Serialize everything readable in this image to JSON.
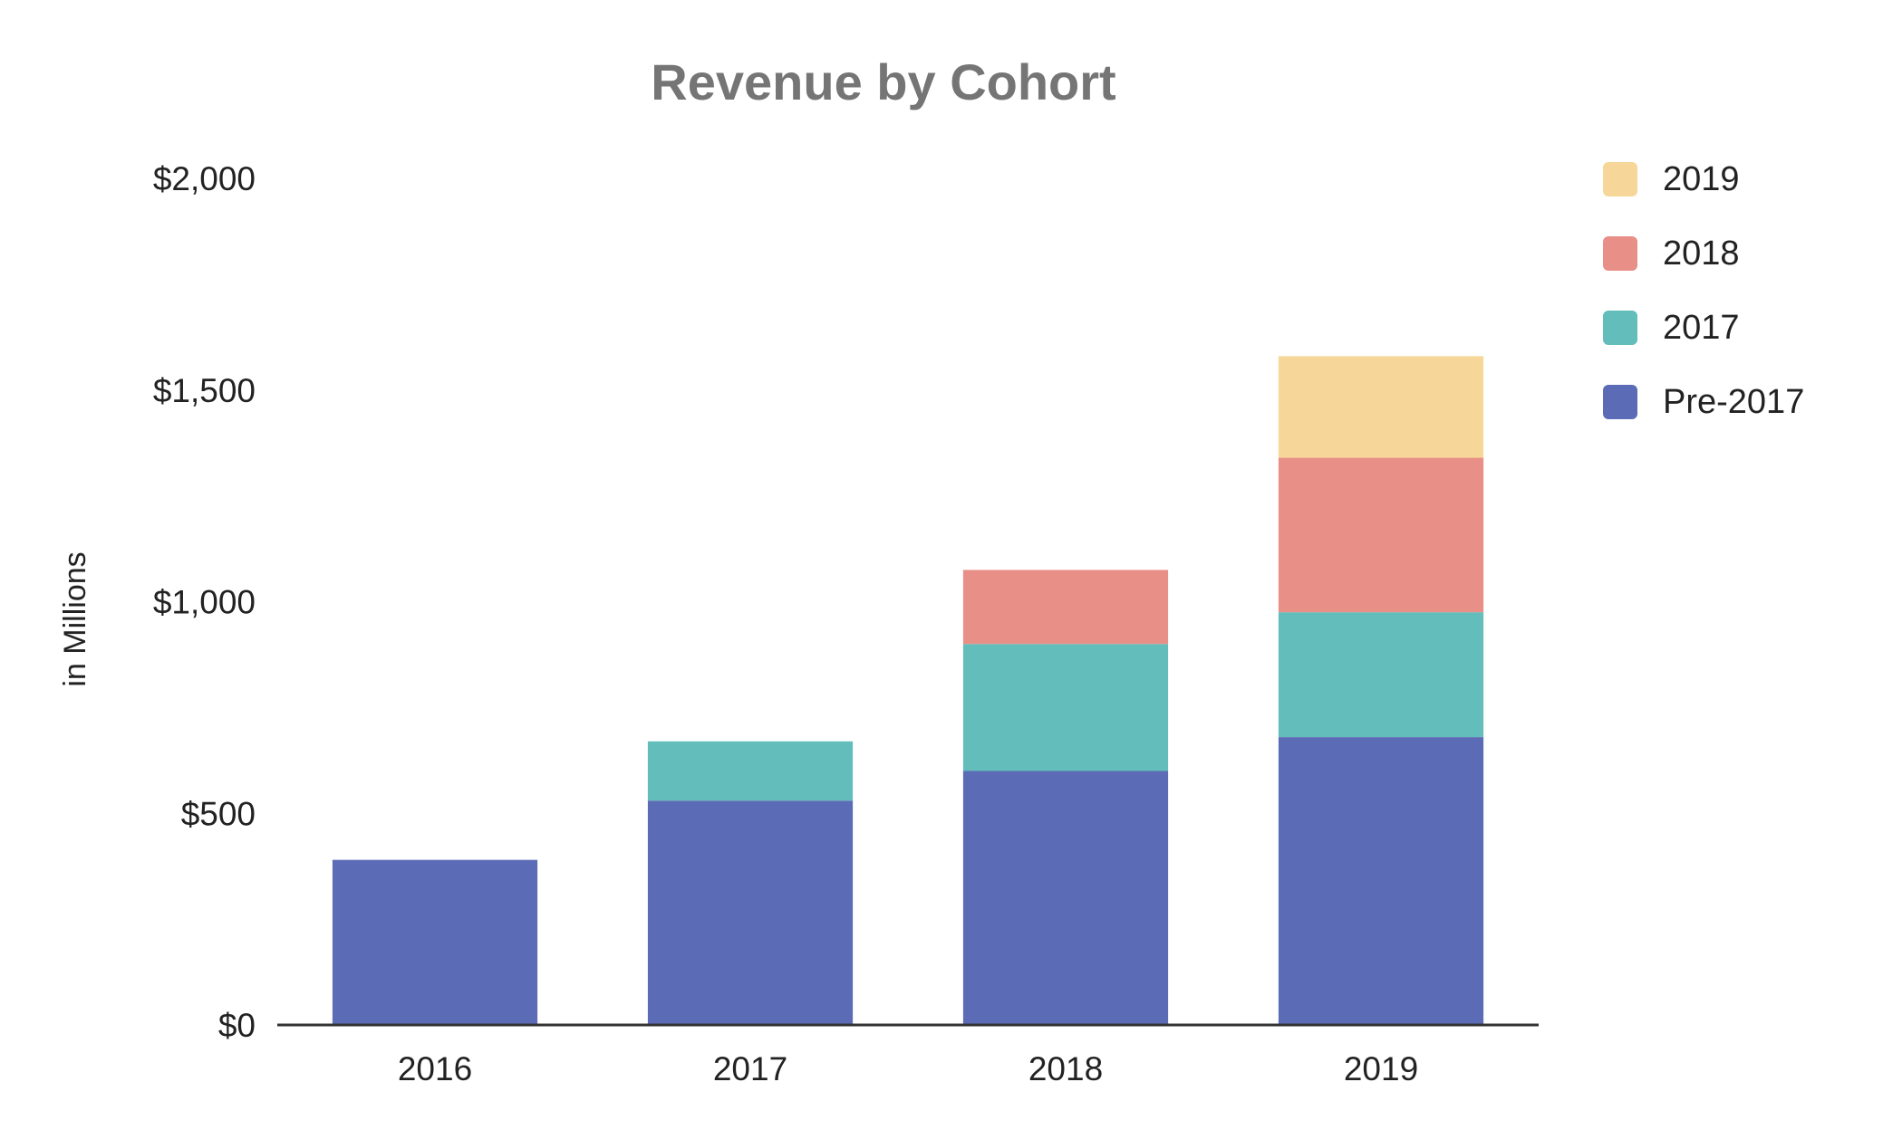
{
  "chart_data": {
    "type": "bar",
    "stacked": true,
    "title": "Revenue by Cohort",
    "xlabel": "",
    "ylabel": "in Millions",
    "categories": [
      "2016",
      "2017",
      "2018",
      "2019"
    ],
    "ylim": [
      0,
      2000
    ],
    "yticks": [
      0,
      500,
      1000,
      1500,
      2000
    ],
    "ytick_labels": [
      "$0",
      "$500",
      "$1,000",
      "$1,500",
      "$2,000"
    ],
    "grid": false,
    "legend_position": "right",
    "series": [
      {
        "name": "Pre-2017",
        "color": "#5c6bb5",
        "values": [
          390,
          530,
          600,
          680
        ]
      },
      {
        "name": "2017",
        "color": "#63bdbb",
        "values": [
          0,
          140,
          300,
          295
        ]
      },
      {
        "name": "2018",
        "color": "#e88f87",
        "values": [
          0,
          0,
          175,
          365
        ]
      },
      {
        "name": "2019",
        "color": "#f7d799",
        "values": [
          0,
          0,
          0,
          240
        ]
      }
    ],
    "legend_order": [
      "2019",
      "2018",
      "2017",
      "Pre-2017"
    ]
  }
}
